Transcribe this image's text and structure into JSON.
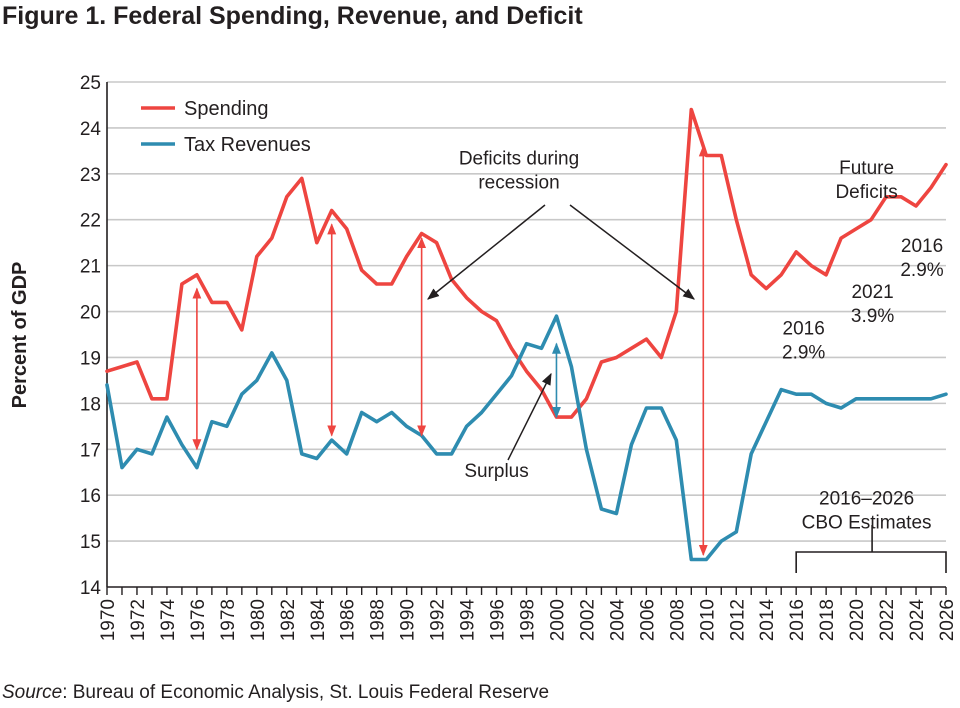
{
  "chart_data": {
    "type": "line",
    "title": "Figure 1. Federal Spending, Revenue, and Deficit",
    "xlabel": "",
    "ylabel": "Percent of GDP",
    "ylim": [
      14,
      25
    ],
    "xlim": [
      1970,
      2026
    ],
    "yticks": [
      "14",
      "15",
      "16",
      "17",
      "18",
      "19",
      "20",
      "21",
      "22",
      "23",
      "24",
      "25"
    ],
    "xticks": [
      "1970",
      "1972",
      "1974",
      "1976",
      "1978",
      "1980",
      "1982",
      "1984",
      "1986",
      "1988",
      "1990",
      "1992",
      "1994",
      "1996",
      "1998",
      "2000",
      "2002",
      "2004",
      "2006",
      "2008",
      "2010",
      "2012",
      "2014",
      "2016",
      "2018",
      "2020",
      "2022",
      "2024",
      "2026"
    ],
    "grid": "horizontal",
    "legend": {
      "position": "top-left",
      "entries": [
        "Spending",
        "Tax Revenues"
      ]
    },
    "colors": {
      "spending": "#ee4540",
      "tax": "#2e8cb0",
      "grid": "#c8c8c8",
      "axis": "#231f20"
    },
    "x": [
      1970,
      1971,
      1972,
      1973,
      1974,
      1975,
      1976,
      1977,
      1978,
      1979,
      1980,
      1981,
      1982,
      1983,
      1984,
      1985,
      1986,
      1987,
      1988,
      1989,
      1990,
      1991,
      1992,
      1993,
      1994,
      1995,
      1996,
      1997,
      1998,
      1999,
      2000,
      2001,
      2002,
      2003,
      2004,
      2005,
      2006,
      2007,
      2008,
      2009,
      2010,
      2011,
      2012,
      2013,
      2014,
      2015,
      2016,
      2017,
      2018,
      2019,
      2020,
      2021,
      2022,
      2023,
      2024,
      2025,
      2026
    ],
    "series": [
      {
        "name": "Spending",
        "color": "#ee4540",
        "values": [
          18.7,
          18.8,
          18.9,
          18.1,
          18.1,
          20.6,
          20.8,
          20.2,
          20.2,
          19.6,
          21.2,
          21.6,
          22.5,
          22.9,
          21.5,
          22.2,
          21.8,
          20.9,
          20.6,
          20.6,
          21.2,
          21.7,
          21.5,
          20.7,
          20.3,
          20.0,
          19.8,
          19.2,
          18.7,
          18.3,
          17.7,
          17.7,
          18.1,
          18.9,
          19.0,
          19.2,
          19.4,
          19.0,
          20.0,
          24.4,
          23.4,
          23.4,
          22.0,
          20.8,
          20.5,
          20.8,
          21.3,
          21.0,
          20.8,
          21.6,
          21.8,
          22.0,
          22.5,
          22.5,
          22.3,
          22.7,
          23.2
        ]
      },
      {
        "name": "Tax Revenues",
        "color": "#2e8cb0",
        "values": [
          18.4,
          16.6,
          17.0,
          16.9,
          17.7,
          17.1,
          16.6,
          17.6,
          17.5,
          18.2,
          18.5,
          19.1,
          18.5,
          16.9,
          16.8,
          17.2,
          16.9,
          17.8,
          17.6,
          17.8,
          17.5,
          17.3,
          16.9,
          16.9,
          17.5,
          17.8,
          18.2,
          18.6,
          19.3,
          19.2,
          19.9,
          18.8,
          17.0,
          15.7,
          15.6,
          17.1,
          17.9,
          17.9,
          17.2,
          14.6,
          14.6,
          15.0,
          15.2,
          16.9,
          17.6,
          18.3,
          18.2,
          18.2,
          18.0,
          17.9,
          18.1,
          18.1,
          18.1,
          18.1,
          18.1,
          18.1,
          18.2
        ]
      }
    ],
    "gap_arrows": [
      {
        "year": 1976,
        "from": 20.5,
        "to": 17.0,
        "kind": "deficit"
      },
      {
        "year": 1985,
        "from": 21.9,
        "to": 17.3,
        "kind": "deficit"
      },
      {
        "year": 1991,
        "from": 21.6,
        "to": 17.3,
        "kind": "deficit"
      },
      {
        "year": 2009.8,
        "from": 23.6,
        "to": 14.7,
        "kind": "deficit"
      },
      {
        "year": 2000,
        "from": 19.3,
        "to": 17.7,
        "kind": "surplus"
      }
    ],
    "annotations": [
      {
        "id": "deficits_recession",
        "lines": [
          "Deficits during",
          "recession"
        ],
        "x": 1997.5,
        "y": 23.2
      },
      {
        "id": "surplus",
        "lines": [
          "Surplus"
        ],
        "x": 1996,
        "y": 16.4
      },
      {
        "id": "future_deficits",
        "lines": [
          "Future",
          "Deficits"
        ],
        "x": 2020.7,
        "y": 23.0
      },
      {
        "id": "pct_2016_a",
        "lines": [
          "2016",
          "2.9%"
        ],
        "x": 2016.5,
        "y": 19.5
      },
      {
        "id": "pct_2021",
        "lines": [
          "2021",
          "3.9%"
        ],
        "x": 2021.1,
        "y": 20.3
      },
      {
        "id": "pct_2016_b",
        "lines": [
          "2016",
          "2.9%"
        ],
        "x": 2024.4,
        "y": 21.3
      },
      {
        "id": "cbo",
        "lines": [
          "2016–2026",
          "CBO Estimates"
        ],
        "x": 2020.7,
        "y": 15.8
      }
    ]
  },
  "page": {
    "title": "Figure 1. Federal Spending, Revenue, and Deficit",
    "source_label": "Source",
    "source_text": ": Bureau of Economic Analysis, St. Louis Federal Reserve"
  }
}
